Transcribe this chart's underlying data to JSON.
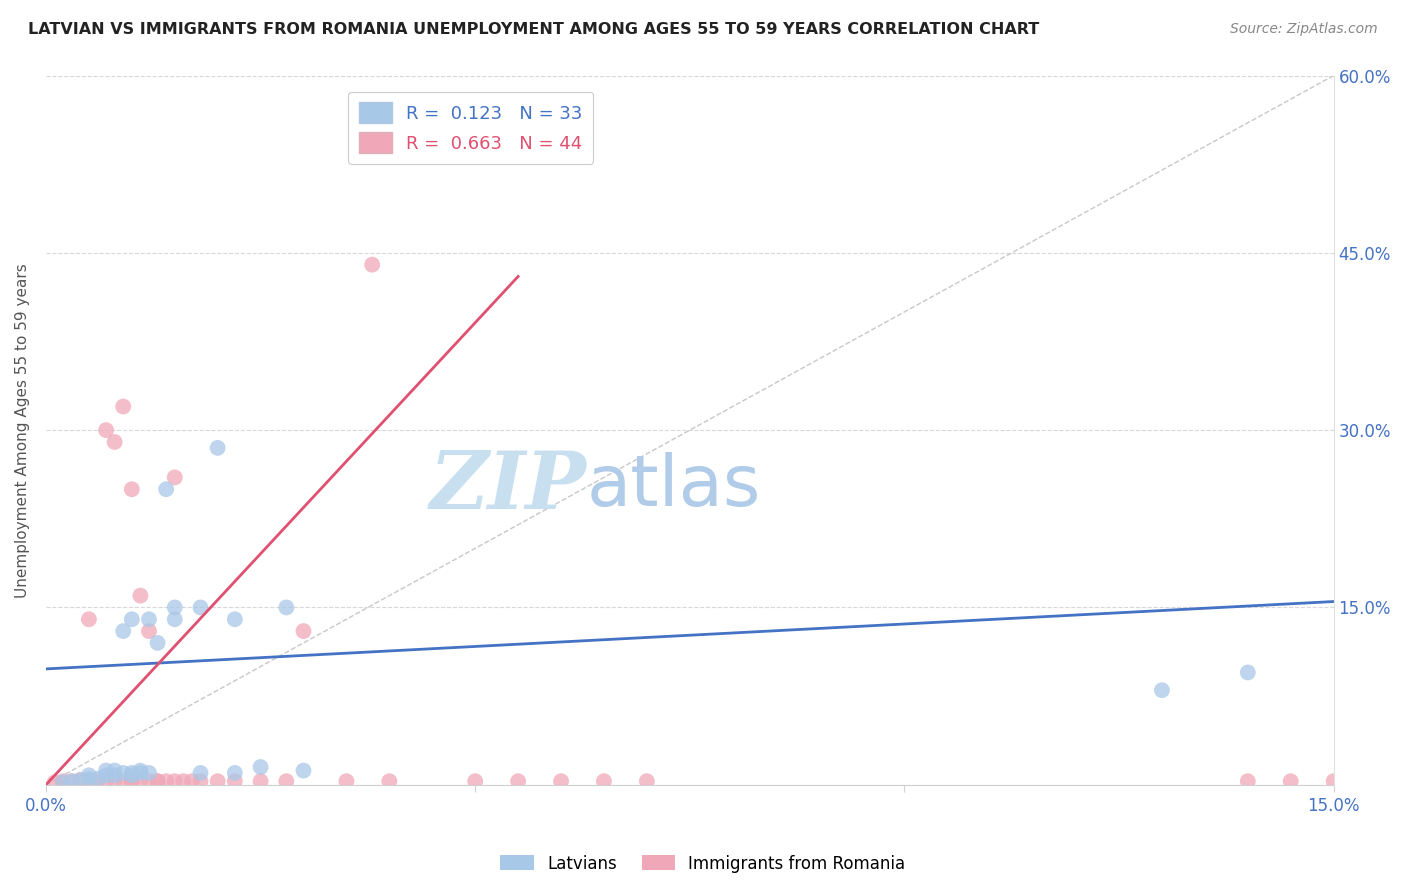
{
  "title": "LATVIAN VS IMMIGRANTS FROM ROMANIA UNEMPLOYMENT AMONG AGES 55 TO 59 YEARS CORRELATION CHART",
  "source": "Source: ZipAtlas.com",
  "ylabel": "Unemployment Among Ages 55 to 59 years",
  "xlim": [
    0.0,
    0.15
  ],
  "ylim": [
    0.0,
    0.6
  ],
  "xticks": [
    0.0,
    0.05,
    0.1,
    0.15
  ],
  "xtick_labels_ends": [
    "0.0%",
    "",
    "",
    "15.0%"
  ],
  "yticks": [
    0.0,
    0.15,
    0.3,
    0.45,
    0.6
  ],
  "ytick_labels": [
    "",
    "15.0%",
    "30.0%",
    "45.0%",
    "60.0%"
  ],
  "latvian_R": 0.123,
  "latvian_N": 33,
  "romanian_R": 0.663,
  "romanian_N": 44,
  "latvian_color": "#a8c8e8",
  "romanian_color": "#f0a8b8",
  "latvian_line_color": "#4472c4",
  "romanian_line_color": "#e05070",
  "watermark_zip": "ZIP",
  "watermark_atlas": "atlas",
  "watermark_color_zip": "#c8dff0",
  "watermark_color_atlas": "#b0cce8",
  "latvian_x": [
    0.002,
    0.003,
    0.004,
    0.005,
    0.005,
    0.006,
    0.007,
    0.007,
    0.008,
    0.008,
    0.009,
    0.009,
    0.01,
    0.01,
    0.01,
    0.011,
    0.011,
    0.012,
    0.012,
    0.013,
    0.014,
    0.015,
    0.018,
    0.02,
    0.022,
    0.025,
    0.028,
    0.03,
    0.022,
    0.018,
    0.015,
    0.13,
    0.14
  ],
  "latvian_y": [
    0.002,
    0.003,
    0.004,
    0.005,
    0.008,
    0.005,
    0.008,
    0.012,
    0.008,
    0.012,
    0.01,
    0.13,
    0.01,
    0.008,
    0.14,
    0.01,
    0.012,
    0.01,
    0.14,
    0.12,
    0.25,
    0.14,
    0.15,
    0.285,
    0.14,
    0.015,
    0.15,
    0.012,
    0.01,
    0.01,
    0.15,
    0.08,
    0.095
  ],
  "romanian_x": [
    0.001,
    0.002,
    0.003,
    0.004,
    0.005,
    0.005,
    0.006,
    0.007,
    0.007,
    0.008,
    0.008,
    0.009,
    0.009,
    0.01,
    0.01,
    0.01,
    0.011,
    0.011,
    0.012,
    0.012,
    0.013,
    0.013,
    0.014,
    0.015,
    0.015,
    0.016,
    0.017,
    0.018,
    0.02,
    0.022,
    0.025,
    0.028,
    0.03,
    0.035,
    0.038,
    0.04,
    0.05,
    0.055,
    0.06,
    0.065,
    0.07,
    0.14,
    0.145,
    0.15
  ],
  "romanian_y": [
    0.002,
    0.003,
    0.003,
    0.004,
    0.003,
    0.14,
    0.003,
    0.003,
    0.3,
    0.003,
    0.29,
    0.003,
    0.32,
    0.003,
    0.25,
    0.003,
    0.003,
    0.16,
    0.003,
    0.13,
    0.003,
    0.003,
    0.003,
    0.003,
    0.26,
    0.003,
    0.003,
    0.003,
    0.003,
    0.003,
    0.003,
    0.003,
    0.13,
    0.003,
    0.44,
    0.003,
    0.003,
    0.003,
    0.003,
    0.003,
    0.003,
    0.003,
    0.003,
    0.003
  ],
  "blue_line_x": [
    0.0,
    0.15
  ],
  "blue_line_y": [
    0.098,
    0.155
  ],
  "pink_line_x": [
    0.0,
    0.055
  ],
  "pink_line_y": [
    0.0,
    0.43
  ]
}
